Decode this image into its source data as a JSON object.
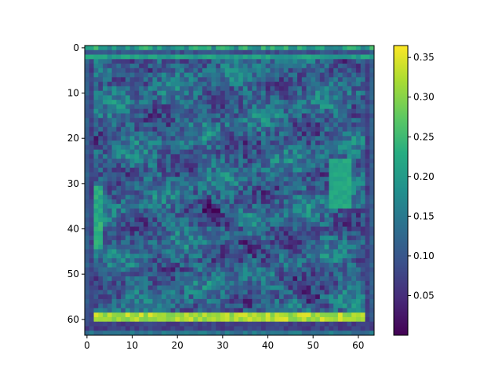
{
  "chart_data": {
    "type": "heatmap",
    "title": "",
    "xlabel": "",
    "ylabel": "",
    "colormap": "viridis",
    "grid_size": [
      64,
      64
    ],
    "x_ticks": [
      0,
      10,
      20,
      30,
      40,
      50,
      60
    ],
    "y_ticks": [
      0,
      10,
      20,
      30,
      40,
      50,
      60
    ],
    "y_axis_direction": "top-to-bottom",
    "value_range": [
      0.0,
      0.365
    ],
    "colorbar_ticks": [
      "0.05",
      "0.10",
      "0.15",
      "0.20",
      "0.25",
      "0.30",
      "0.35"
    ],
    "features": {
      "background_mean": 0.12,
      "top_row_0_value": 0.2,
      "bright_band_rows": [
        59,
        60
      ],
      "bright_band_value": 0.32,
      "dark_rows": [
        61,
        62
      ],
      "dark_row_value": 0.05,
      "bright_patch_rows": [
        25,
        35
      ],
      "bright_patch_cols": [
        54,
        58
      ],
      "bright_patch_value": 0.22
    }
  }
}
